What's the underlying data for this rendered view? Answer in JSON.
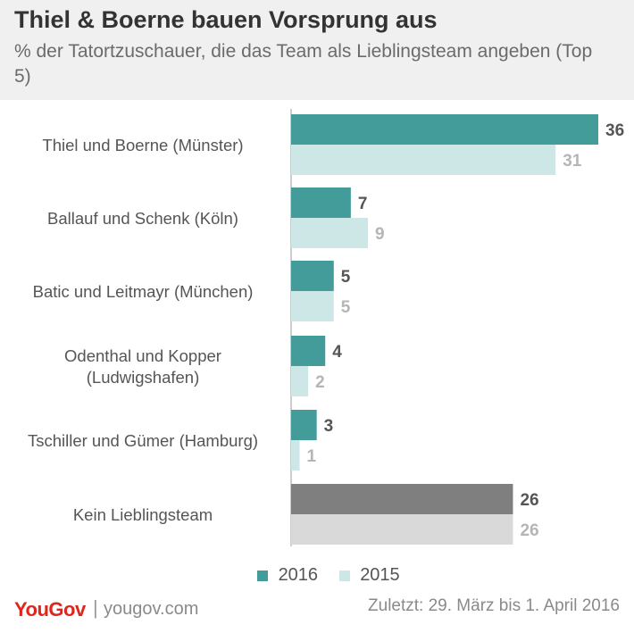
{
  "header": {
    "title": "Thiel & Boerne bauen Vorsprung aus",
    "subtitle": "% der Tatortzuschauer, die das Team als Lieblingsteam angeben (Top 5)"
  },
  "colors": {
    "s2016": "#449c9a",
    "s2015": "#cde6e6",
    "kein2016": "#7f7f7f",
    "kein2015": "#d9d9d9",
    "label2016": "#555555",
    "label2015": "#b5b5b5",
    "axis": "#bbbbbb",
    "category": "#555555"
  },
  "chart_data": {
    "type": "bar",
    "orientation": "horizontal",
    "categories": [
      "Thiel und Boerne (Münster)",
      "Ballauf und Schenk (Köln)",
      "Batic und Leitmayr (München)",
      "Odenthal und Kopper (Ludwigshafen)",
      "Tschiller und Gümer (Hamburg)",
      "Kein Lieblingsteam"
    ],
    "series": [
      {
        "name": "2016",
        "values": [
          36,
          7,
          5,
          4,
          3,
          26
        ]
      },
      {
        "name": "2015",
        "values": [
          31,
          9,
          5,
          2,
          1,
          26
        ]
      }
    ],
    "xlim": [
      0,
      36
    ],
    "data_labels": true,
    "legend_position": "bottom"
  },
  "legend": {
    "label_2016": "2016",
    "label_2015": "2015"
  },
  "footer": {
    "brand": "YouGov",
    "separator": "|",
    "url": "yougov.com",
    "date": "Zuletzt: 29. März bis 1. April 2016"
  }
}
